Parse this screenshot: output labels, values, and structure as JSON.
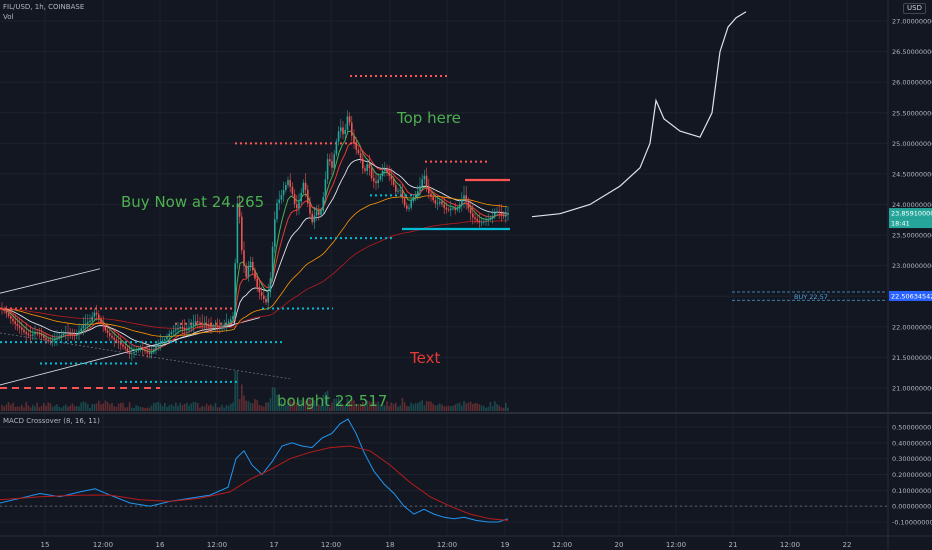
{
  "header": {
    "symbol_line": "FIL/USD, 1h, COINBASE",
    "volume_label": "Vol",
    "currency": "USD",
    "macd_label": "MACD Crossover (8, 16, 11)"
  },
  "annotations": {
    "buy_now": "Buy Now at 24.265",
    "top_here": "Top here",
    "text": "Text",
    "bought": "bought 22.517"
  },
  "colors": {
    "background": "#131722",
    "up": "#26a69a",
    "down": "#ef5350",
    "annotation_green": "#4caf50",
    "annotation_red": "#e53935",
    "level_red": "#ff5252",
    "level_cyan": "#00bcd4"
  },
  "chart_data": [
    {
      "type": "candlestick",
      "panel": "price",
      "y_axis_ticks": [
        "27.00000000",
        "26.50000000",
        "26.00000000",
        "25.50000000",
        "25.00000000",
        "24.50000000",
        "24.00000000",
        "23.50000000",
        "23.00000000",
        "22.50000000",
        "22.00000000",
        "21.50000000",
        "21.00000000"
      ],
      "ylim": [
        20.8,
        27.15
      ],
      "x_axis_ticks": [
        "15",
        "12:00",
        "16",
        "12:00",
        "17",
        "12:00",
        "18",
        "12:00",
        "19",
        "12:00",
        "20",
        "12:00",
        "21",
        "12:00",
        "22"
      ],
      "price_labels": {
        "last_price": "23.85910000",
        "countdown": "18:41",
        "order_price": "22.50634542",
        "order_label": "BUY 22.57"
      },
      "close_path": [
        [
          0,
          22.3
        ],
        [
          5,
          22.25
        ],
        [
          10,
          22.15
        ],
        [
          15,
          22.05
        ],
        [
          20,
          21.98
        ],
        [
          25,
          21.9
        ],
        [
          30,
          21.85
        ],
        [
          35,
          21.9
        ],
        [
          40,
          21.88
        ],
        [
          45,
          21.8
        ],
        [
          50,
          21.75
        ],
        [
          55,
          21.8
        ],
        [
          60,
          21.85
        ],
        [
          65,
          21.9
        ],
        [
          70,
          21.88
        ],
        [
          75,
          21.85
        ],
        [
          80,
          21.95
        ],
        [
          85,
          22.05
        ],
        [
          90,
          22.1
        ],
        [
          95,
          22.25
        ],
        [
          100,
          22.1
        ],
        [
          105,
          21.95
        ],
        [
          110,
          21.85
        ],
        [
          115,
          21.78
        ],
        [
          120,
          21.72
        ],
        [
          125,
          21.65
        ],
        [
          130,
          21.55
        ],
        [
          135,
          21.6
        ],
        [
          140,
          21.65
        ],
        [
          145,
          21.6
        ],
        [
          150,
          21.55
        ],
        [
          155,
          21.65
        ],
        [
          160,
          21.75
        ],
        [
          165,
          21.8
        ],
        [
          170,
          21.9
        ],
        [
          175,
          21.95
        ],
        [
          180,
          22.0
        ],
        [
          185,
          21.95
        ],
        [
          190,
          22.0
        ],
        [
          195,
          22.1
        ],
        [
          200,
          22.05
        ],
        [
          205,
          22.05
        ],
        [
          210,
          22.0
        ],
        [
          215,
          22.02
        ],
        [
          220,
          21.98
        ],
        [
          225,
          22.05
        ],
        [
          230,
          22.1
        ],
        [
          234,
          22.2
        ],
        [
          236,
          23.6
        ],
        [
          238,
          24.2
        ],
        [
          242,
          23.2
        ],
        [
          246,
          22.8
        ],
        [
          250,
          23.1
        ],
        [
          254,
          22.85
        ],
        [
          258,
          22.6
        ],
        [
          262,
          22.5
        ],
        [
          266,
          22.4
        ],
        [
          270,
          22.7
        ],
        [
          273,
          23.4
        ],
        [
          276,
          24.0
        ],
        [
          280,
          24.1
        ],
        [
          284,
          24.25
        ],
        [
          288,
          24.4
        ],
        [
          292,
          24.2
        ],
        [
          296,
          23.9
        ],
        [
          300,
          24.1
        ],
        [
          304,
          24.4
        ],
        [
          308,
          24.0
        ],
        [
          312,
          23.7
        ],
        [
          316,
          23.9
        ],
        [
          320,
          23.8
        ],
        [
          324,
          24.2
        ],
        [
          328,
          24.8
        ],
        [
          332,
          24.6
        ],
        [
          336,
          25.0
        ],
        [
          340,
          25.3
        ],
        [
          344,
          25.1
        ],
        [
          348,
          25.5
        ],
        [
          352,
          25.1
        ],
        [
          356,
          24.9
        ],
        [
          360,
          24.8
        ],
        [
          364,
          24.5
        ],
        [
          368,
          24.7
        ],
        [
          372,
          24.4
        ],
        [
          376,
          24.35
        ],
        [
          380,
          24.45
        ],
        [
          384,
          24.6
        ],
        [
          388,
          24.5
        ],
        [
          392,
          24.4
        ],
        [
          396,
          24.2
        ],
        [
          400,
          24.25
        ],
        [
          404,
          24.0
        ],
        [
          408,
          23.9
        ],
        [
          412,
          24.1
        ],
        [
          416,
          24.15
        ],
        [
          420,
          24.3
        ],
        [
          424,
          24.5
        ],
        [
          428,
          24.2
        ],
        [
          432,
          24.1
        ],
        [
          436,
          24.0
        ],
        [
          440,
          24.05
        ],
        [
          444,
          23.95
        ],
        [
          448,
          23.9
        ],
        [
          452,
          23.95
        ],
        [
          456,
          23.9
        ],
        [
          460,
          24.0
        ],
        [
          464,
          24.15
        ],
        [
          468,
          23.95
        ],
        [
          472,
          23.8
        ],
        [
          476,
          23.75
        ],
        [
          480,
          23.7
        ],
        [
          484,
          23.72
        ],
        [
          488,
          23.75
        ],
        [
          492,
          23.8
        ],
        [
          496,
          23.9
        ],
        [
          500,
          23.85
        ],
        [
          504,
          23.8
        ],
        [
          508,
          23.86
        ]
      ],
      "forecast_path": [
        [
          532,
          23.8
        ],
        [
          560,
          23.85
        ],
        [
          590,
          24.0
        ],
        [
          620,
          24.3
        ],
        [
          640,
          24.6
        ],
        [
          650,
          25.0
        ],
        [
          656,
          25.7
        ],
        [
          664,
          25.4
        ],
        [
          680,
          25.2
        ],
        [
          700,
          25.1
        ],
        [
          712,
          25.5
        ],
        [
          720,
          26.5
        ],
        [
          728,
          26.9
        ],
        [
          736,
          27.05
        ],
        [
          746,
          27.15
        ]
      ],
      "levels": [
        {
          "color": "red",
          "price": 26.1,
          "x": [
            350,
            450
          ]
        },
        {
          "color": "red",
          "price": 25.0,
          "x": [
            235,
            360
          ]
        },
        {
          "color": "red",
          "price": 24.7,
          "x": [
            425,
            488
          ]
        },
        {
          "color": "red",
          "price": 24.4,
          "x": [
            465,
            510
          ]
        },
        {
          "color": "red",
          "price": 22.3,
          "x": [
            0,
            235
          ]
        },
        {
          "color": "red",
          "price": 22.05,
          "x": [
            175,
            235
          ]
        },
        {
          "color": "red",
          "price": 21.0,
          "x": [
            0,
            160
          ]
        },
        {
          "color": "cyan",
          "price": 24.15,
          "x": [
            370,
            420
          ]
        },
        {
          "color": "cyan",
          "price": 23.6,
          "x": [
            402,
            510
          ]
        },
        {
          "color": "cyan",
          "price": 23.45,
          "x": [
            310,
            392
          ]
        },
        {
          "color": "cyan",
          "price": 22.3,
          "x": [
            262,
            333
          ]
        },
        {
          "color": "cyan",
          "price": 21.75,
          "x": [
            0,
            285
          ]
        },
        {
          "color": "cyan",
          "price": 21.4,
          "x": [
            40,
            140
          ]
        },
        {
          "color": "cyan",
          "price": 21.1,
          "x": [
            120,
            240
          ]
        }
      ]
    },
    {
      "type": "line",
      "panel": "macd",
      "title": "MACD Crossover (8, 16, 11)",
      "y_axis_ticks": [
        "0.50000000",
        "0.40000000",
        "0.30000000",
        "0.20000000",
        "0.10000000",
        "0.00000000",
        "-0.10000000"
      ],
      "ylim": [
        -0.14,
        0.56
      ],
      "series": [
        {
          "key": "macd",
          "color": "#2196f3",
          "points": [
            [
              0,
              0.02
            ],
            [
              20,
              0.05
            ],
            [
              40,
              0.08
            ],
            [
              60,
              0.06
            ],
            [
              80,
              0.09
            ],
            [
              95,
              0.11
            ],
            [
              110,
              0.07
            ],
            [
              130,
              0.02
            ],
            [
              150,
              0.0
            ],
            [
              170,
              0.03
            ],
            [
              190,
              0.05
            ],
            [
              210,
              0.07
            ],
            [
              228,
              0.12
            ],
            [
              236,
              0.3
            ],
            [
              244,
              0.35
            ],
            [
              252,
              0.26
            ],
            [
              262,
              0.2
            ],
            [
              272,
              0.28
            ],
            [
              282,
              0.38
            ],
            [
              292,
              0.4
            ],
            [
              302,
              0.38
            ],
            [
              312,
              0.37
            ],
            [
              322,
              0.43
            ],
            [
              332,
              0.46
            ],
            [
              340,
              0.52
            ],
            [
              348,
              0.55
            ],
            [
              356,
              0.46
            ],
            [
              364,
              0.34
            ],
            [
              374,
              0.22
            ],
            [
              384,
              0.14
            ],
            [
              394,
              0.08
            ],
            [
              404,
              0.0
            ],
            [
              414,
              -0.05
            ],
            [
              424,
              -0.02
            ],
            [
              434,
              -0.05
            ],
            [
              444,
              -0.07
            ],
            [
              454,
              -0.08
            ],
            [
              464,
              -0.07
            ],
            [
              476,
              -0.09
            ],
            [
              488,
              -0.1
            ],
            [
              498,
              -0.1
            ],
            [
              508,
              -0.08
            ]
          ]
        },
        {
          "key": "signal",
          "color": "#b71c1c",
          "points": [
            [
              0,
              0.04
            ],
            [
              40,
              0.06
            ],
            [
              80,
              0.07
            ],
            [
              110,
              0.07
            ],
            [
              140,
              0.04
            ],
            [
              170,
              0.03
            ],
            [
              200,
              0.05
            ],
            [
              230,
              0.09
            ],
            [
              250,
              0.17
            ],
            [
              270,
              0.23
            ],
            [
              290,
              0.3
            ],
            [
              310,
              0.34
            ],
            [
              330,
              0.37
            ],
            [
              350,
              0.38
            ],
            [
              370,
              0.35
            ],
            [
              390,
              0.26
            ],
            [
              410,
              0.15
            ],
            [
              430,
              0.06
            ],
            [
              450,
              0.0
            ],
            [
              470,
              -0.05
            ],
            [
              490,
              -0.08
            ],
            [
              508,
              -0.09
            ]
          ]
        }
      ]
    }
  ]
}
